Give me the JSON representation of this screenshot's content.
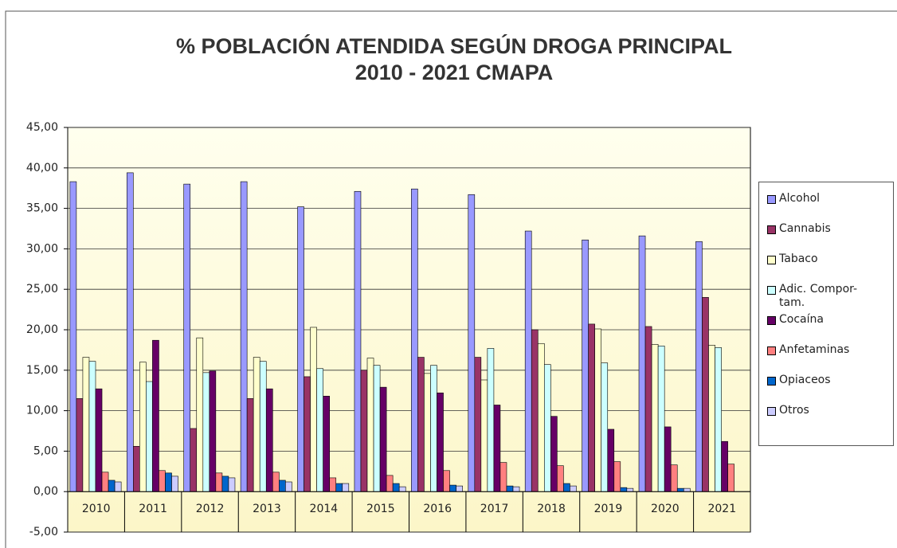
{
  "chart_data": {
    "type": "bar",
    "title": [
      "% POBLACIÓN ATENDIDA SEGÚN DROGA PRINCIPAL",
      "2010 - 2021 CMAPA"
    ],
    "categories": [
      "2010",
      "2011",
      "2012",
      "2013",
      "2014",
      "2015",
      "2016",
      "2017",
      "2018",
      "2019",
      "2020",
      "2021"
    ],
    "series": [
      {
        "name": "Alcohol",
        "color": "#9999ff",
        "values": [
          38.3,
          39.4,
          38.0,
          38.3,
          35.2,
          37.1,
          37.4,
          36.7,
          32.2,
          31.1,
          31.6,
          30.9
        ]
      },
      {
        "name": "Cannabis",
        "color": "#993366",
        "values": [
          11.5,
          5.6,
          7.8,
          11.5,
          14.2,
          15.0,
          16.6,
          16.6,
          20.0,
          20.7,
          20.4,
          24.0
        ]
      },
      {
        "name": "Tabaco",
        "color": "#ffffcc",
        "values": [
          16.6,
          16.0,
          19.0,
          16.6,
          20.3,
          16.5,
          14.6,
          13.8,
          18.3,
          20.1,
          18.2,
          18.1
        ]
      },
      {
        "name": "Adic. Compor-tam.",
        "color": "#ccffff",
        "values": [
          16.1,
          13.6,
          14.7,
          16.1,
          15.2,
          15.6,
          15.6,
          17.7,
          15.7,
          15.9,
          18.0,
          17.8
        ]
      },
      {
        "name": "Cocaína",
        "color": "#660066",
        "values": [
          12.7,
          18.7,
          14.9,
          12.7,
          11.8,
          12.9,
          12.2,
          10.7,
          9.3,
          7.7,
          8.0,
          6.2
        ]
      },
      {
        "name": "Anfetaminas",
        "color": "#ff8080",
        "values": [
          2.4,
          2.6,
          2.3,
          2.4,
          1.7,
          2.0,
          2.6,
          3.6,
          3.2,
          3.7,
          3.3,
          3.4
        ]
      },
      {
        "name": "Opiaceos",
        "color": "#0066cc",
        "values": [
          1.4,
          2.3,
          1.9,
          1.4,
          1.0,
          1.0,
          0.8,
          0.7,
          1.0,
          0.5,
          0.4,
          0
        ]
      },
      {
        "name": "Otros",
        "color": "#ccccff",
        "values": [
          1.2,
          1.9,
          1.7,
          1.2,
          1.0,
          0.6,
          0.7,
          0.6,
          0.7,
          0.4,
          0.4,
          0
        ]
      }
    ],
    "ylim": [
      -5,
      45
    ],
    "yticks": [
      {
        "value": -5,
        "label": "-5,00"
      },
      {
        "value": 0,
        "label": "0,00"
      },
      {
        "value": 5,
        "label": "5,00"
      },
      {
        "value": 10,
        "label": "10,00"
      },
      {
        "value": 15,
        "label": "15,00"
      },
      {
        "value": 20,
        "label": "20,00"
      },
      {
        "value": 25,
        "label": "25,00"
      },
      {
        "value": 30,
        "label": "30,00"
      },
      {
        "value": 35,
        "label": "35,00"
      },
      {
        "value": 40,
        "label": "40,00"
      },
      {
        "value": 45,
        "label": "45,00"
      }
    ],
    "grid": true,
    "legend": "right"
  }
}
